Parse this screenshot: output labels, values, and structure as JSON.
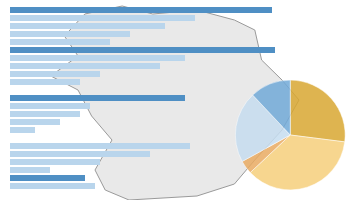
{
  "chart_data": [
    {
      "type": "bar",
      "orientation": "horizontal",
      "tick_labels": false,
      "grid": false,
      "categories": [
        null,
        null,
        null,
        null,
        null,
        null,
        null,
        null,
        null,
        null,
        null,
        null,
        null,
        null,
        null,
        null,
        null,
        null,
        null,
        null,
        null,
        null,
        null
      ],
      "values": [
        262,
        185,
        155,
        120,
        100,
        265,
        175,
        150,
        90,
        70,
        null,
        175,
        80,
        70,
        50,
        25,
        null,
        180,
        140,
        90,
        40,
        75,
        85
      ],
      "colors": [
        "#4f8fc4",
        "#b9d5ec",
        "#b9d5ec",
        "#b9d5ec",
        "#b9d5ec",
        "#4f8fc4",
        "#b9d5ec",
        "#b9d5ec",
        "#b9d5ec",
        "#b9d5ec",
        "#b9d5ec",
        "#4f8fc4",
        "#b9d5ec",
        "#b9d5ec",
        "#b9d5ec",
        "#b9d5ec",
        "#b9d5ec",
        "#b9d5ec",
        "#b9d5ec",
        "#b9d5ec",
        "#b9d5ec",
        "#4f8fc4",
        "#b9d5ec"
      ],
      "xlim": [
        0,
        340
      ]
    },
    {
      "type": "pie",
      "tick_labels": false,
      "values": [
        27,
        36,
        4,
        21,
        12
      ],
      "colors": [
        "#d9a832",
        "#f6cf7c",
        "#e9ab62",
        "#c6ddf0",
        "#72aad8"
      ]
    }
  ]
}
